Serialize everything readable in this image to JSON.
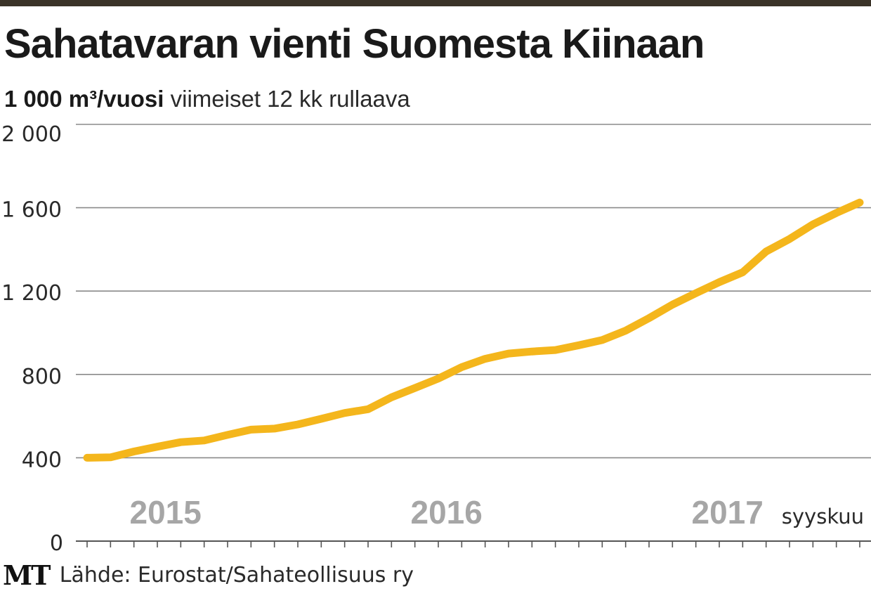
{
  "title": "Sahatavaran vienti Suomesta Kiinaan",
  "subtitle": {
    "unit": "1 000 m³/vuosi",
    "description": "viimeiset 12 kk rullaava"
  },
  "source": "Lähde: Eurostat/Sahateollisuus ry",
  "logo": "MT",
  "colors": {
    "line": "#f4b61c",
    "grid": "#8a8a8a",
    "topbar": "#3a3328",
    "year_label": "#a6a6a6"
  },
  "chart_data": {
    "type": "line",
    "title": "Sahatavaran vienti Suomesta Kiinaan",
    "ylabel": "1 000 m³/vuosi",
    "ylim": [
      0,
      2000
    ],
    "yticks": [
      0,
      400,
      800,
      1200,
      1600,
      2000
    ],
    "ytick_labels": [
      "0",
      "400",
      "800",
      "1 200",
      "1 600",
      "2 000"
    ],
    "grid": true,
    "x_year_labels": [
      {
        "label": "2015",
        "month_index": 2
      },
      {
        "label": "2016",
        "month_index": 14
      },
      {
        "label": "2017",
        "month_index": 26
      }
    ],
    "end_label": "syyskuu",
    "months": 33,
    "series": [
      {
        "values": [
          400,
          402,
          430,
          453,
          475,
          483,
          510,
          535,
          540,
          560,
          587,
          615,
          633,
          690,
          735,
          780,
          835,
          875,
          900,
          910,
          917,
          940,
          965,
          1010,
          1070,
          1135,
          1190,
          1243,
          1290,
          1390,
          1450,
          1520,
          1575,
          1625
        ]
      }
    ]
  }
}
